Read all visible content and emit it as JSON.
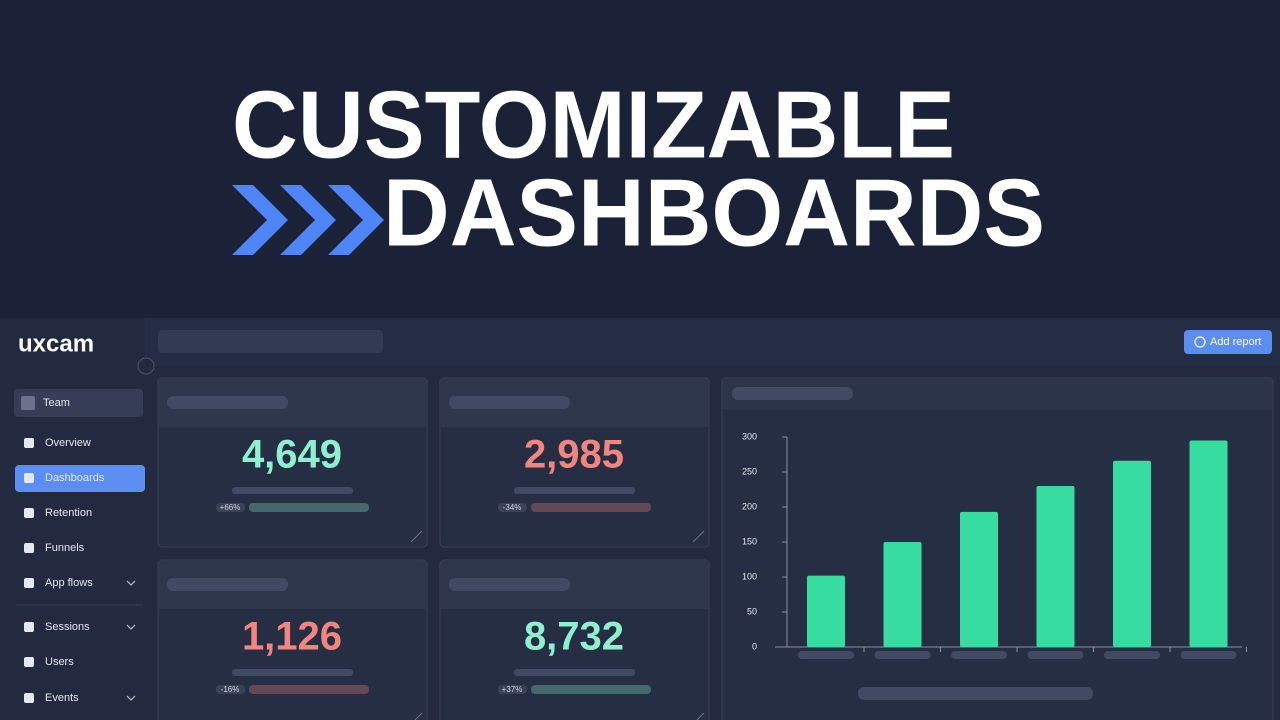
{
  "header": {
    "line1": "CUSTOMIZABLE",
    "line2": "DASHBOARDS"
  },
  "app": {
    "logo": "uxcam",
    "button": "Add report"
  },
  "sidebar": {
    "team": "Team",
    "items": [
      "Overview",
      "Dashboards",
      "Retention",
      "Funnels",
      "App flows",
      "Sessions",
      "Users",
      "Events"
    ]
  },
  "metrics": [
    {
      "value": "4,649",
      "change": "+66%",
      "color": "#8ef0cf"
    },
    {
      "value": "2,985",
      "change": "-34%",
      "color": "#f2867f"
    },
    {
      "value": "1,126",
      "change": "-16%",
      "color": "#f2867f"
    },
    {
      "value": "8,732",
      "change": "+37%",
      "color": "#8ef0cf"
    }
  ],
  "chart_data": {
    "type": "bar",
    "categories": [
      null,
      null,
      null,
      null,
      null,
      null
    ],
    "values": [
      102,
      150,
      193,
      230,
      266,
      295
    ],
    "color": "#36dca0",
    "ylim": [
      0,
      300
    ],
    "yticks": [
      0,
      50,
      100,
      150,
      200,
      250,
      300
    ],
    "grid": false
  }
}
